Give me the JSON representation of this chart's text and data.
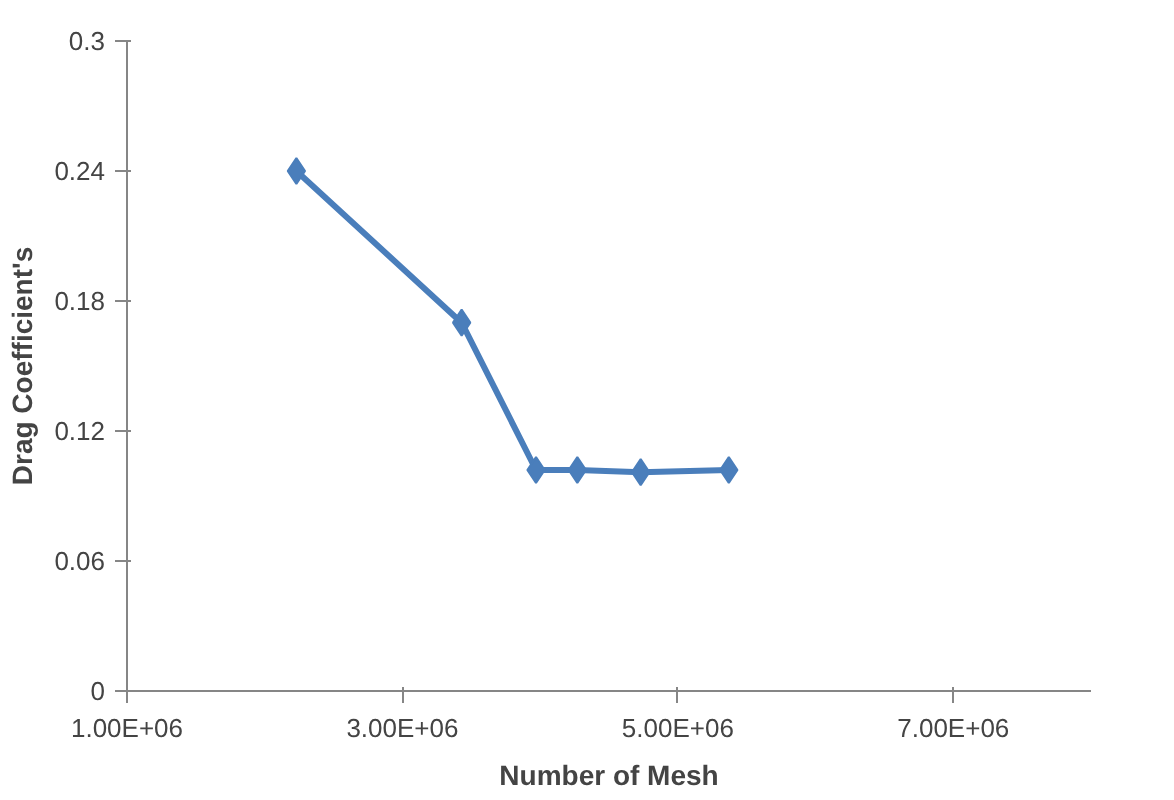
{
  "chart_data": {
    "type": "line",
    "xlabel": "Number of Mesh",
    "ylabel": "Drag Coefficient's",
    "x": [
      2230000,
      3430000,
      3970000,
      4270000,
      4730000,
      5370000
    ],
    "series": [
      {
        "color": "#4a7ebb",
        "values": [
          0.24,
          0.17,
          0.102,
          0.102,
          0.101,
          0.102
        ]
      }
    ],
    "xlim": [
      1000000,
      8000000
    ],
    "xticks": [
      {
        "value": 1000000,
        "label": "1.00E+06"
      },
      {
        "value": 3000000,
        "label": "3.00E+06"
      },
      {
        "value": 5000000,
        "label": "5.00E+06"
      },
      {
        "value": 7000000,
        "label": "7.00E+06"
      }
    ],
    "ylim": [
      0,
      0.3
    ],
    "yticks": [
      {
        "value": 0,
        "label": "0"
      },
      {
        "value": 0.06,
        "label": "0.06"
      },
      {
        "value": 0.12,
        "label": "0.12"
      },
      {
        "value": 0.18,
        "label": "0.18"
      },
      {
        "value": 0.24,
        "label": "0.24"
      },
      {
        "value": 0.3,
        "label": "0.3"
      }
    ],
    "grid": false,
    "marker": "diamond",
    "line_style": "solid"
  }
}
